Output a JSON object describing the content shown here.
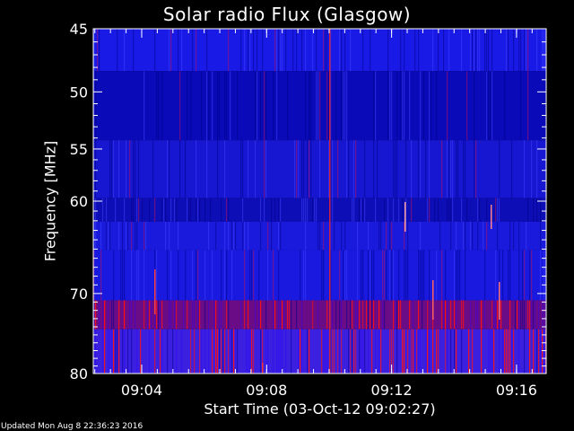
{
  "chart_data": {
    "type": "heatmap",
    "title": "Solar radio Flux (Glasgow)",
    "xlabel": "Start Time (03-Oct-12 09:02:27)",
    "ylabel": "Frequency [MHz]",
    "x_ticks": [
      "09:04",
      "09:08",
      "09:12",
      "09:16"
    ],
    "x_tick_seconds": [
      93,
      333,
      573,
      813
    ],
    "xlim_seconds": [
      0,
      870
    ],
    "y_ticks": [
      45,
      50,
      55,
      60,
      70,
      80
    ],
    "ylim": [
      80,
      45
    ],
    "y_scale": "log",
    "bands": [
      {
        "from": 45.0,
        "to": 48.3,
        "color": "#1a1ae6"
      },
      {
        "from": 48.3,
        "to": 54.2,
        "color": "#0a0ab8"
      },
      {
        "from": 54.2,
        "to": 59.7,
        "color": "#1717d2"
      },
      {
        "from": 59.7,
        "to": 62.1,
        "color": "#0e0eb6"
      },
      {
        "from": 62.1,
        "to": 65.1,
        "color": "#1a1adc"
      },
      {
        "from": 65.1,
        "to": 70.8,
        "color": "#1919e0"
      },
      {
        "from": 70.8,
        "to": 74.3,
        "color": "#6a0c86"
      },
      {
        "from": 74.3,
        "to": 80.0,
        "color": "#3c20e0"
      }
    ],
    "colors": {
      "low": "#0000c0",
      "high": "#ff0000",
      "background": "#000000",
      "axes": "#ffffff"
    }
  },
  "footer": {
    "updated": "Updated Mon Aug  8 22:36:23 2016"
  }
}
